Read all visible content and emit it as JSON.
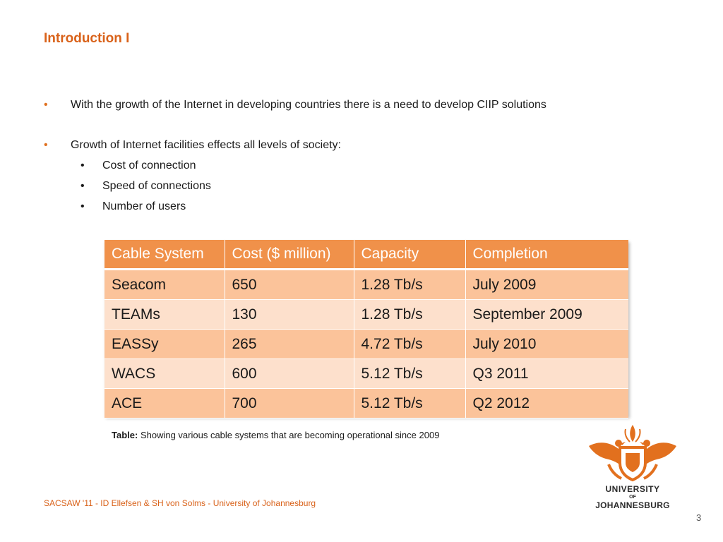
{
  "title": "Introduction I",
  "bullets": [
    {
      "text": "With the growth of the Internet in developing countries there is a need to develop CIIP solutions"
    },
    {
      "text": "Growth of Internet facilities effects all levels of society:",
      "sub": [
        "Cost of connection",
        "Speed of connections",
        "Number of users"
      ]
    }
  ],
  "table": {
    "headers": [
      "Cable System",
      "Cost ($ million)",
      "Capacity",
      "Completion"
    ],
    "rows": [
      [
        "Seacom",
        "650",
        "1.28 Tb/s",
        "July 2009"
      ],
      [
        "TEAMs",
        "130",
        "1.28 Tb/s",
        "September 2009"
      ],
      [
        "EASSy",
        "265",
        "4.72 Tb/s",
        "July 2010"
      ],
      [
        "WACS",
        "600",
        "5.12 Tb/s",
        "Q3 2011"
      ],
      [
        "ACE",
        "700",
        "5.12 Tb/s",
        "Q2 2012"
      ]
    ]
  },
  "caption": {
    "label": "Table:",
    "text": "Showing various cable systems that are becoming operational since 2009"
  },
  "footer": "SACSAW '11 - ID Ellefsen & SH von Solms - University of Johannesburg",
  "page_number": "3",
  "logo": {
    "line1": "UNIVERSITY",
    "line2": "OF",
    "line3": "JOHANNESBURG",
    "icon": "university-crest-icon"
  },
  "colors": {
    "accent": "#d9621a",
    "header_bg": "#f0914a",
    "row_odd": "#fbc39a",
    "row_even": "#fde0cc"
  }
}
